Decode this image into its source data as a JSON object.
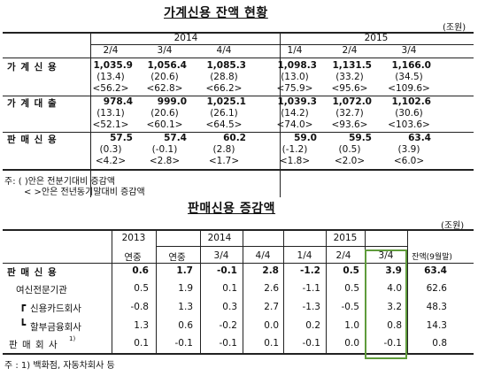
{
  "table1": {
    "title": "가계신용 잔액 현황",
    "unit": "(조원)",
    "years": [
      "2014",
      "2015"
    ],
    "quarters": [
      "2/4",
      "3/4",
      "4/4",
      "1/4",
      "2/4",
      "3/4"
    ],
    "rows": [
      {
        "label": "가 계 신 용",
        "values": [
          "1,035.9",
          "1,056.4",
          "1,085.3",
          "1,098.3",
          "1,131.5",
          "1,166.0"
        ],
        "qoq": [
          "(13.4)",
          "(20.6)",
          "(28.8)",
          "(13.0)",
          "(33.2)",
          "(34.5)"
        ],
        "yoy": [
          "<56.2>",
          "<62.8>",
          "<66.2>",
          "<75.9>",
          "<95.6>",
          "<109.6>"
        ]
      },
      {
        "label": "가 계 대 출",
        "values": [
          "978.4",
          "999.0",
          "1,025.1",
          "1,039.3",
          "1,072.0",
          "1,102.6"
        ],
        "qoq": [
          "(13.1)",
          "(20.6)",
          "(26.1)",
          "(14.2)",
          "(32.7)",
          "(30.6)"
        ],
        "yoy": [
          "<52.1>",
          "<60.1>",
          "<64.5>",
          "<74.0>",
          "<93.6>",
          "<103.6>"
        ]
      },
      {
        "label": "판 매 신 용",
        "values": [
          "57.5",
          "57.4",
          "60.2",
          "59.0",
          "59.5",
          "63.4"
        ],
        "qoq": [
          "(0.3)",
          "(-0.1)",
          "(2.8)",
          "(-1.2)",
          "(0.5)",
          "(3.9)"
        ],
        "yoy": [
          "<4.2>",
          "<2.8>",
          "<1.7>",
          "<1.8>",
          "<2.0>",
          "<6.0>"
        ]
      }
    ],
    "notes": [
      "주: (  )안은 전분기대비 증감액",
      "< >안은 전년동기말대비 증감액"
    ]
  },
  "table2": {
    "title": "판매신용 증감액",
    "unit": "(조원)",
    "year_headers": [
      "2013",
      "2014",
      "2015"
    ],
    "sub_headers": [
      "연중",
      "연중",
      "3/4",
      "4/4",
      "1/4",
      "2/4",
      "3/4",
      "잔액(9월말)"
    ],
    "rows": [
      {
        "label": "판 매 신 용",
        "values": [
          "0.6",
          "1.7",
          "-0.1",
          "2.8",
          "-1.2",
          "0.5",
          "3.9",
          "63.4"
        ]
      },
      {
        "label": "여신전문기관",
        "values": [
          "0.5",
          "1.9",
          "0.1",
          "2.6",
          "-1.1",
          "0.5",
          "4.0",
          "62.6"
        ]
      },
      {
        "label": "신용카드회사",
        "values": [
          "-0.8",
          "1.3",
          "0.3",
          "2.7",
          "-1.3",
          "-0.5",
          "3.2",
          "48.3"
        ]
      },
      {
        "label": "할부금융회사",
        "values": [
          "1.3",
          "0.6",
          "-0.2",
          "0.0",
          "0.2",
          "1.0",
          "0.8",
          "14.3"
        ]
      },
      {
        "label": "판 매 회 사",
        "sup": "1)",
        "values": [
          "0.1",
          "-0.1",
          "-0.1",
          "0.1",
          "-0.1",
          "0.0",
          "-0.1",
          "0.8"
        ]
      }
    ],
    "note": "주 : 1)  백화점, 자동차회사 등"
  }
}
